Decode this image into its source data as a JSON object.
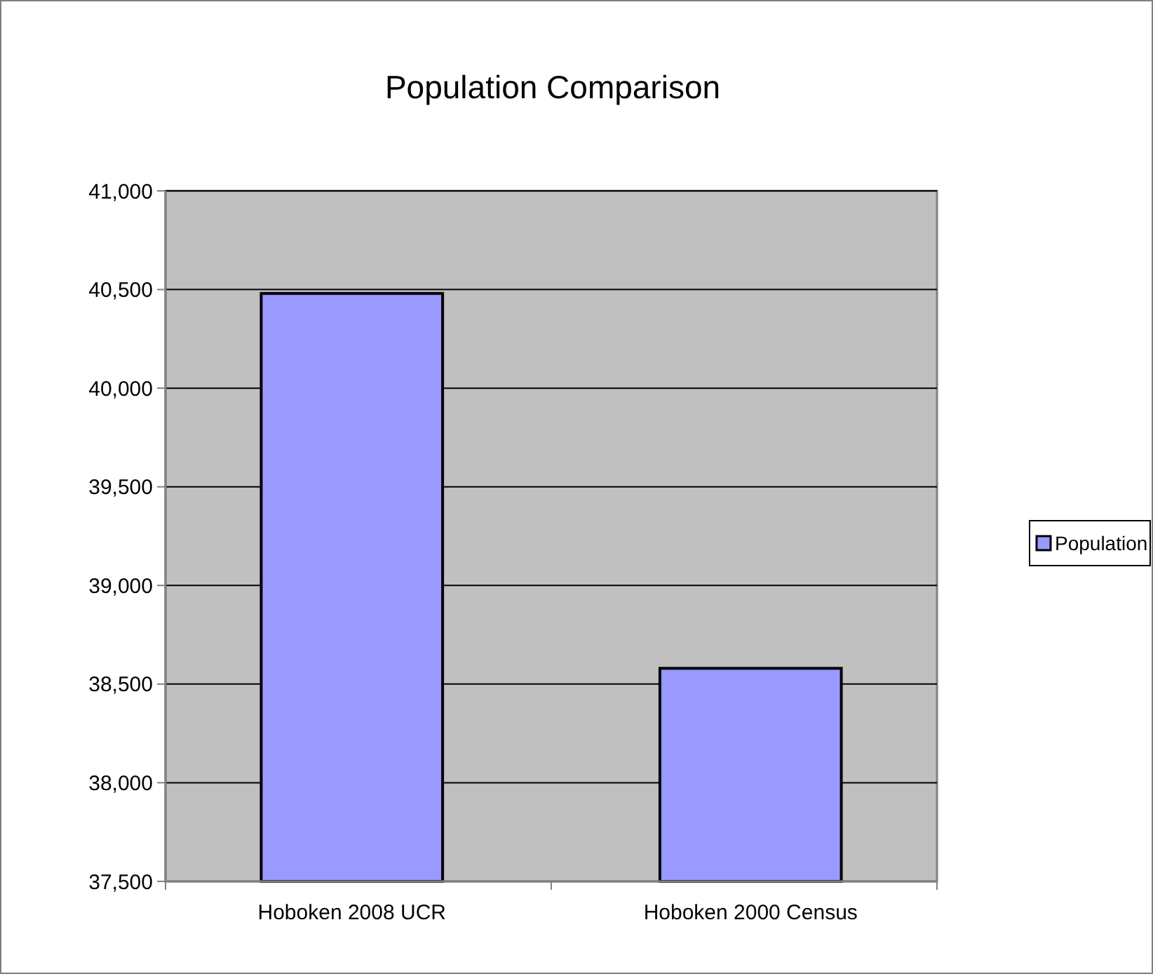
{
  "chart_data": {
    "type": "bar",
    "title": "Population Comparison",
    "categories": [
      "Hoboken 2008 UCR",
      "Hoboken 2000 Census"
    ],
    "series": [
      {
        "name": "Population",
        "color": "#9999ff",
        "values": [
          40480,
          38580
        ]
      }
    ],
    "ylim": [
      37500,
      41000
    ],
    "yticks": [
      {
        "value": 37500,
        "label": "37,500"
      },
      {
        "value": 38000,
        "label": "38,000"
      },
      {
        "value": 38500,
        "label": "38,500"
      },
      {
        "value": 39000,
        "label": "39,000"
      },
      {
        "value": 39500,
        "label": "39,500"
      },
      {
        "value": 40000,
        "label": "40,000"
      },
      {
        "value": 40500,
        "label": "40,500"
      },
      {
        "value": 41000,
        "label": "41,000"
      }
    ],
    "grid": "y",
    "legend": "right"
  }
}
